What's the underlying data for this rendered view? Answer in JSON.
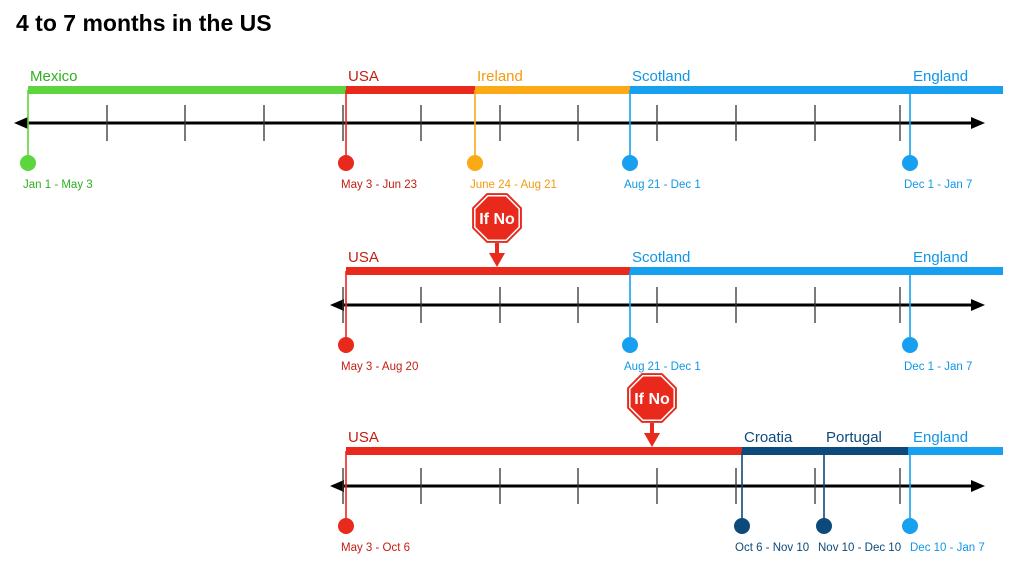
{
  "title": "4 to 7 months in the US",
  "colors": {
    "mexico": "#5cd63c",
    "usa": "#e8291c",
    "ireland": "#fba914",
    "scotland": "#18a0f0",
    "croatia": "#0d4a7c",
    "axis": "#000000"
  },
  "stop_sign_label": "If No",
  "timelines": [
    {
      "segments": [
        {
          "name": "Mexico",
          "dates": "Jan 1 - May 3",
          "color": "#5cd63c",
          "name_color": "#2fae20",
          "date_color": "#2fae20"
        },
        {
          "name": "USA",
          "dates": "May 3 - Jun 23",
          "color": "#e8291c",
          "name_color": "#c41e12",
          "date_color": "#c41e12"
        },
        {
          "name": "Ireland",
          "dates": "June 24 - Aug 21",
          "color": "#fba914",
          "name_color": "#f39a10",
          "date_color": "#f39a10"
        },
        {
          "name": "Scotland",
          "dates": "Aug 21 - Dec 1",
          "color": "#18a0f0",
          "name_color": "#1196e6",
          "date_color": "#1196e6"
        },
        {
          "name": "England",
          "dates": "Dec 1 - Jan 7",
          "color": "#18a0f0",
          "name_color": "#1196e6",
          "date_color": "#1196e6"
        }
      ]
    },
    {
      "segments": [
        {
          "name": "USA",
          "dates": "May 3 - Aug 20",
          "color": "#e8291c",
          "name_color": "#c41e12",
          "date_color": "#c41e12"
        },
        {
          "name": "Scotland",
          "dates": "Aug 21 - Dec 1",
          "color": "#18a0f0",
          "name_color": "#1196e6",
          "date_color": "#1196e6"
        },
        {
          "name": "England",
          "dates": "Dec 1 - Jan 7",
          "color": "#18a0f0",
          "name_color": "#1196e6",
          "date_color": "#1196e6"
        }
      ]
    },
    {
      "segments": [
        {
          "name": "USA",
          "dates": "May 3 - Oct 6",
          "color": "#e8291c",
          "name_color": "#c41e12",
          "date_color": "#c41e12"
        },
        {
          "name": "Croatia",
          "dates": "Oct 6 - Nov 10",
          "color": "#0d4a7c",
          "name_color": "#0d4a7c",
          "date_color": "#0d4a7c"
        },
        {
          "name": "Portugal",
          "dates": "Nov 10 - Dec 10",
          "color": "#0d4a7c",
          "name_color": "#0d4a7c",
          "date_color": "#0d4a7c"
        },
        {
          "name": "England",
          "dates": "Dec 10 - Jan 7",
          "color": "#18a0f0",
          "name_color": "#1196e6",
          "date_color": "#1196e6"
        }
      ]
    }
  ]
}
